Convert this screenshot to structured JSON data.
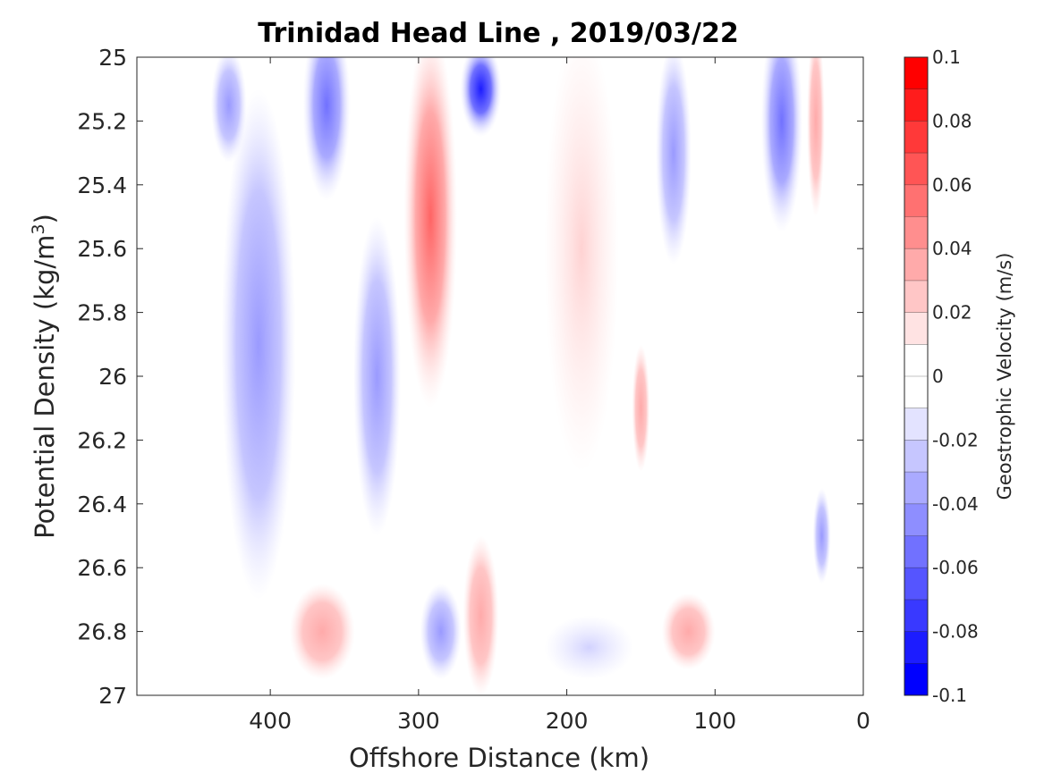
{
  "chart_data": {
    "type": "contour",
    "title": "Trinidad Head Line , 2019/03/22",
    "xlabel": "Offshore Distance (km)",
    "ylabel_main": "Potential Density (kg/m",
    "ylabel_sup": "3",
    "ylabel_end": ")",
    "colorbar_label": "Geostrophic Velocity (m/s)",
    "xlim": [
      490,
      0
    ],
    "ylim": [
      25,
      27
    ],
    "x_reversed": true,
    "y_reversed": true,
    "xticks": [
      400,
      300,
      200,
      100,
      0
    ],
    "xtick_labels": [
      "400",
      "300",
      "200",
      "100",
      "0"
    ],
    "yticks": [
      25,
      25.2,
      25.4,
      25.6,
      25.8,
      26,
      26.2,
      26.4,
      26.6,
      26.8,
      27
    ],
    "ytick_labels": [
      "25",
      "25.2",
      "25.4",
      "25.6",
      "25.8",
      "26",
      "26.2",
      "26.4",
      "26.6",
      "26.8",
      "27"
    ],
    "colorbar_ticks": [
      0.1,
      0.08,
      0.06,
      0.04,
      0.02,
      0,
      -0.02,
      -0.04,
      -0.06,
      -0.08,
      -0.1
    ],
    "colorbar_tick_labels": [
      "0.1",
      "0.08",
      "0.06",
      "0.04",
      "0.02",
      "0",
      "-0.02",
      "-0.04",
      "-0.06",
      "-0.08",
      "-0.1"
    ],
    "colorbar_range": [
      -0.1,
      0.1
    ],
    "colorbar_colors": [
      "#ff0000",
      "#ff1c1c",
      "#ff3939",
      "#ff5555",
      "#ff7171",
      "#ff8e8e",
      "#ffaaaa",
      "#ffc6c6",
      "#ffe3e3",
      "#ffffff",
      "#ffffff",
      "#e3e3ff",
      "#c6c6ff",
      "#aaaaff",
      "#8e8eff",
      "#7171ff",
      "#5555ff",
      "#3939ff",
      "#1c1cff",
      "#0000ff"
    ],
    "features": [
      {
        "sign": "neg",
        "peak": -0.04,
        "x": 408,
        "y": 25.9,
        "w": 25,
        "h": 0.8
      },
      {
        "sign": "neg",
        "peak": -0.04,
        "x": 428,
        "y": 25.15,
        "w": 12,
        "h": 0.18
      },
      {
        "sign": "neg",
        "peak": -0.06,
        "x": 362,
        "y": 25.15,
        "w": 16,
        "h": 0.3
      },
      {
        "sign": "neg",
        "peak": -0.04,
        "x": 328,
        "y": 26.0,
        "w": 16,
        "h": 0.5
      },
      {
        "sign": "neg",
        "peak": -0.04,
        "x": 285,
        "y": 26.8,
        "w": 14,
        "h": 0.15
      },
      {
        "sign": "pos",
        "peak": 0.06,
        "x": 292,
        "y": 25.5,
        "w": 18,
        "h": 0.6
      },
      {
        "sign": "neg",
        "peak": -0.1,
        "x": 258,
        "y": 25.1,
        "w": 14,
        "h": 0.15
      },
      {
        "sign": "pos",
        "peak": 0.04,
        "x": 258,
        "y": 26.75,
        "w": 12,
        "h": 0.25
      },
      {
        "sign": "pos",
        "peak": 0.04,
        "x": 365,
        "y": 26.8,
        "w": 22,
        "h": 0.15
      },
      {
        "sign": "pos",
        "peak": 0.04,
        "x": 118,
        "y": 26.8,
        "w": 18,
        "h": 0.12
      },
      {
        "sign": "pos",
        "peak": 0.02,
        "x": 190,
        "y": 25.6,
        "w": 25,
        "h": 0.7
      },
      {
        "sign": "pos",
        "peak": 0.04,
        "x": 150,
        "y": 26.1,
        "w": 6,
        "h": 0.2
      },
      {
        "sign": "neg",
        "peak": -0.04,
        "x": 128,
        "y": 25.3,
        "w": 12,
        "h": 0.35
      },
      {
        "sign": "neg",
        "peak": -0.06,
        "x": 55,
        "y": 25.2,
        "w": 14,
        "h": 0.35
      },
      {
        "sign": "pos",
        "peak": 0.04,
        "x": 32,
        "y": 25.2,
        "w": 6,
        "h": 0.3
      },
      {
        "sign": "neg",
        "peak": -0.04,
        "x": 28,
        "y": 26.5,
        "w": 6,
        "h": 0.15
      },
      {
        "sign": "neg",
        "peak": -0.02,
        "x": 185,
        "y": 26.85,
        "w": 30,
        "h": 0.1
      }
    ]
  }
}
